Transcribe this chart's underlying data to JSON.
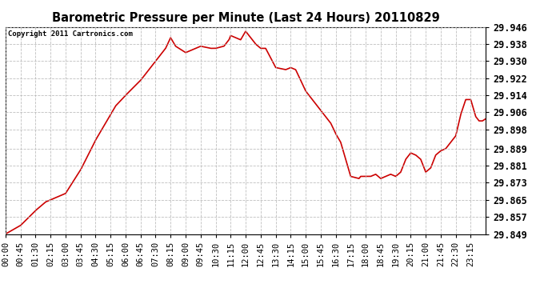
{
  "title": "Barometric Pressure per Minute (Last 24 Hours) 20110829",
  "copyright": "Copyright 2011 Cartronics.com",
  "line_color": "#cc0000",
  "background_color": "#ffffff",
  "plot_bg_color": "#ffffff",
  "grid_color": "#b8b8b8",
  "ylim": [
    29.849,
    29.946
  ],
  "yticks": [
    29.849,
    29.857,
    29.865,
    29.873,
    29.881,
    29.889,
    29.898,
    29.906,
    29.914,
    29.922,
    29.93,
    29.938,
    29.946
  ],
  "xtick_labels": [
    "00:00",
    "00:45",
    "01:30",
    "02:15",
    "03:00",
    "03:45",
    "04:30",
    "05:15",
    "06:00",
    "06:45",
    "07:30",
    "08:15",
    "09:00",
    "09:45",
    "10:30",
    "11:15",
    "12:00",
    "12:45",
    "13:30",
    "14:15",
    "15:00",
    "15:45",
    "16:30",
    "17:15",
    "18:00",
    "18:45",
    "19:30",
    "20:15",
    "21:00",
    "21:45",
    "22:30",
    "23:15"
  ],
  "key_x": [
    0,
    45,
    90,
    120,
    150,
    180,
    225,
    270,
    315,
    330,
    360,
    405,
    450,
    480,
    495,
    510,
    530,
    540,
    555,
    570,
    585,
    615,
    630,
    655,
    670,
    675,
    690,
    705,
    720,
    750,
    765,
    780,
    810,
    840,
    855,
    870,
    900,
    930,
    945,
    975,
    990,
    1005,
    1035,
    1060,
    1065,
    1080,
    1095,
    1110,
    1125,
    1140,
    1155,
    1170,
    1185,
    1200,
    1215,
    1230,
    1245,
    1260,
    1275,
    1290,
    1305,
    1320,
    1335,
    1350,
    1365,
    1380,
    1395,
    1410,
    1420,
    1430,
    1440
  ],
  "key_y": [
    29.849,
    29.853,
    29.86,
    29.864,
    29.866,
    29.868,
    29.879,
    29.893,
    29.905,
    29.909,
    29.914,
    29.921,
    29.93,
    29.936,
    29.941,
    29.937,
    29.935,
    29.934,
    29.935,
    29.936,
    29.937,
    29.936,
    29.936,
    29.937,
    29.94,
    29.942,
    29.941,
    29.94,
    29.944,
    29.938,
    29.936,
    29.936,
    29.927,
    29.926,
    29.927,
    29.926,
    29.916,
    29.91,
    29.907,
    29.901,
    29.896,
    29.892,
    29.876,
    29.875,
    29.876,
    29.876,
    29.876,
    29.877,
    29.875,
    29.876,
    29.877,
    29.876,
    29.878,
    29.884,
    29.887,
    29.886,
    29.884,
    29.878,
    29.88,
    29.886,
    29.888,
    29.889,
    29.892,
    29.895,
    29.905,
    29.912,
    29.912,
    29.904,
    29.902,
    29.902,
    29.903
  ]
}
